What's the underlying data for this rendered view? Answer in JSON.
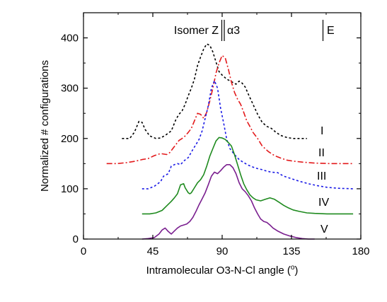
{
  "chart_data": {
    "type": "line",
    "title": "",
    "xlabel": "Intramolecular O3-N-Cl angle (",
    "xlabel_sup": "o",
    "xlabel_end": ")",
    "ylabel": "Normalized # configurations",
    "xlim": [
      0,
      180
    ],
    "ylim": [
      0,
      450
    ],
    "xticks": [
      0,
      45,
      90,
      135,
      180
    ],
    "yticks": [
      0,
      100,
      200,
      300,
      400
    ],
    "grid": false,
    "legend": "none",
    "annotations": {
      "isomer_z": "Isomer Z",
      "alpha3": "α3",
      "e": "E"
    },
    "series": [
      {
        "name": "I",
        "color": "#000000",
        "dash": "3,3",
        "x": [
          25,
          30,
          33,
          36,
          38,
          40,
          43,
          47,
          50,
          53,
          57,
          60,
          62,
          64,
          66,
          68,
          70,
          72,
          74,
          76,
          78,
          80,
          82,
          84,
          86,
          88,
          90,
          93,
          96,
          99,
          101,
          103,
          105,
          107,
          110,
          113,
          116,
          119,
          122,
          125,
          128,
          132,
          136,
          140,
          145
        ],
        "y": [
          200,
          200,
          212,
          234,
          232,
          218,
          205,
          200,
          201,
          206,
          215,
          238,
          248,
          255,
          268,
          285,
          300,
          318,
          345,
          362,
          378,
          388,
          385,
          372,
          352,
          333,
          326,
          318,
          313,
          308,
          314,
          310,
          302,
          288,
          268,
          248,
          232,
          224,
          220,
          212,
          206,
          202,
          200,
          200,
          200
        ]
      },
      {
        "name": "II",
        "color": "#e31a1c",
        "dash": "8,3,2,3",
        "x": [
          15,
          22,
          28,
          34,
          38,
          42,
          46,
          50,
          54,
          56,
          58,
          60,
          62,
          64,
          66,
          68,
          70,
          72,
          74,
          76,
          78,
          80,
          82,
          84,
          86,
          88,
          90,
          92,
          94,
          96,
          98,
          100,
          102,
          104,
          106,
          108,
          110,
          113,
          116,
          120,
          124,
          128,
          132,
          136,
          142,
          150,
          160,
          170,
          175
        ],
        "y": [
          150,
          150,
          152,
          155,
          158,
          160,
          166,
          170,
          168,
          172,
          180,
          188,
          196,
          200,
          205,
          212,
          220,
          235,
          250,
          248,
          240,
          252,
          275,
          300,
          330,
          350,
          365,
          360,
          338,
          312,
          292,
          278,
          268,
          252,
          235,
          224,
          212,
          200,
          185,
          174,
          166,
          161,
          157,
          155,
          153,
          151,
          150,
          150,
          150
        ]
      },
      {
        "name": "III",
        "color": "#1a1ae6",
        "dash": "3,3",
        "x": [
          38,
          42,
          46,
          50,
          52,
          55,
          57,
          59,
          61,
          63,
          65,
          68,
          71,
          73,
          75,
          77,
          79,
          81,
          83,
          85,
          87,
          89,
          91,
          93,
          95,
          98,
          101,
          104,
          107,
          110,
          113,
          116,
          119,
          122,
          126,
          130,
          135,
          140,
          146,
          152,
          158,
          165,
          175
        ],
        "y": [
          100,
          100,
          105,
          114,
          125,
          130,
          145,
          148,
          150,
          148,
          155,
          162,
          178,
          188,
          198,
          215,
          240,
          265,
          300,
          315,
          300,
          260,
          230,
          198,
          180,
          168,
          158,
          152,
          147,
          143,
          140,
          138,
          135,
          133,
          132,
          125,
          120,
          115,
          110,
          106,
          103,
          101,
          100
        ]
      },
      {
        "name": "IV",
        "color": "#1e8a1e",
        "dash": "",
        "x": [
          38,
          43,
          47,
          51,
          54,
          57,
          59,
          61,
          62,
          63,
          65,
          66,
          68,
          69,
          70,
          72,
          74,
          76,
          78,
          80,
          82,
          84,
          86,
          88,
          90,
          92,
          94,
          96,
          98,
          100,
          102,
          104,
          106,
          108,
          110,
          112,
          115,
          118,
          121,
          124,
          127,
          130,
          133,
          136,
          140,
          145,
          150,
          158,
          166,
          175
        ],
        "y": [
          50,
          50,
          52,
          57,
          66,
          75,
          82,
          90,
          99,
          108,
          110,
          102,
          92,
          90,
          92,
          102,
          112,
          118,
          128,
          145,
          165,
          180,
          195,
          202,
          201,
          198,
          192,
          185,
          168,
          148,
          128,
          110,
          98,
          88,
          82,
          78,
          76,
          79,
          82,
          79,
          73,
          67,
          62,
          58,
          55,
          52,
          51,
          50,
          50,
          50
        ]
      },
      {
        "name": "V",
        "color": "#7a1f8f",
        "dash": "",
        "x": [
          38,
          42,
          46,
          49,
          51,
          53,
          55,
          57,
          59,
          61,
          63,
          65,
          67,
          69,
          71,
          73,
          75,
          77,
          79,
          81,
          83,
          85,
          87,
          89,
          91,
          93,
          95,
          97,
          99,
          101,
          103,
          105,
          107,
          109,
          111,
          113,
          115,
          117,
          119,
          121,
          123,
          126,
          130,
          134,
          138,
          142,
          146,
          150
        ],
        "y": [
          0,
          1,
          3,
          10,
          18,
          22,
          15,
          10,
          16,
          22,
          26,
          28,
          30,
          35,
          43,
          55,
          68,
          80,
          92,
          108,
          125,
          133,
          130,
          136,
          143,
          148,
          148,
          142,
          130,
          112,
          100,
          94,
          86,
          76,
          62,
          50,
          40,
          35,
          33,
          28,
          22,
          16,
          10,
          6,
          3,
          1,
          0,
          0
        ]
      }
    ]
  }
}
